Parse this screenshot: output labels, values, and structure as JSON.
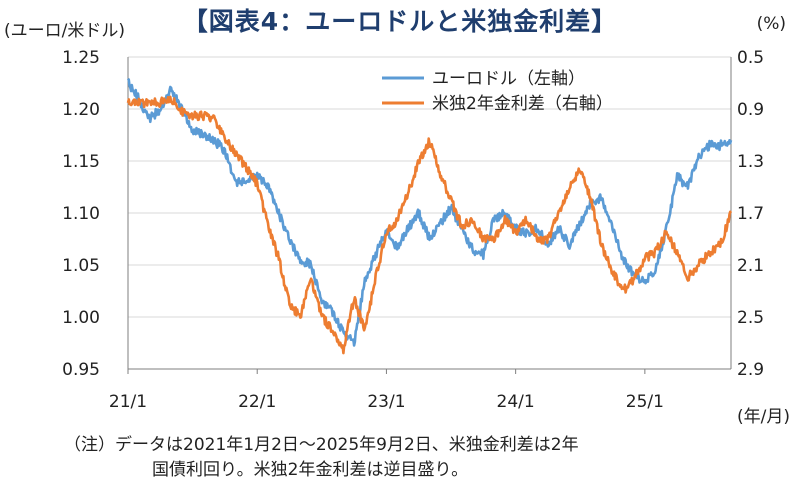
{
  "header": {
    "title": "【図表4：ユーロドルと米独金利差】",
    "left_unit": "(ユーロ/米ドル)",
    "right_unit": "(%)",
    "x_unit": "(年/月)"
  },
  "note": {
    "line1": "（注）データは2021年1月2日～2025年9月2日、米独金利差は2年",
    "line2": "国債利回り。米独2年金利差は逆目盛り。"
  },
  "colors": {
    "eurusd": "#5b9bd5",
    "spread": "#ed7d31",
    "grid": "#d9d9d9"
  },
  "chart_data": {
    "type": "line",
    "x_tick_labels": [
      "21/1",
      "22/1",
      "23/1",
      "24/1",
      "25/1"
    ],
    "x_range": [
      "2021-01",
      "2025-09"
    ],
    "y_left": {
      "ticks": [
        "1.25",
        "1.20",
        "1.15",
        "1.10",
        "1.05",
        "1.00",
        "0.95"
      ],
      "ylim": [
        0.95,
        1.25
      ]
    },
    "y_right": {
      "ticks": [
        "0.5",
        "0.9",
        "1.3",
        "1.7",
        "2.1",
        "2.5",
        "2.9"
      ],
      "ylim": [
        2.9,
        0.5
      ],
      "inverted": true
    },
    "grid": "horizontal",
    "legend_position": "top-right",
    "series": [
      {
        "name": "ユーロドル（左軸）",
        "axis": "left",
        "points": [
          [
            "2021-01",
            1.225
          ],
          [
            "2021-02",
            1.21
          ],
          [
            "2021-03",
            1.19
          ],
          [
            "2021-04",
            1.2
          ],
          [
            "2021-05",
            1.22
          ],
          [
            "2021-06",
            1.2
          ],
          [
            "2021-07",
            1.18
          ],
          [
            "2021-08",
            1.175
          ],
          [
            "2021-09",
            1.17
          ],
          [
            "2021-10",
            1.16
          ],
          [
            "2021-11",
            1.13
          ],
          [
            "2021-12",
            1.13
          ],
          [
            "2022-01",
            1.135
          ],
          [
            "2022-02",
            1.125
          ],
          [
            "2022-03",
            1.1
          ],
          [
            "2022-04",
            1.075
          ],
          [
            "2022-05",
            1.055
          ],
          [
            "2022-06",
            1.05
          ],
          [
            "2022-07",
            1.015
          ],
          [
            "2022-08",
            1.005
          ],
          [
            "2022-09",
            0.985
          ],
          [
            "2022-10",
            0.975
          ],
          [
            "2022-11",
            1.035
          ],
          [
            "2022-12",
            1.06
          ],
          [
            "2023-01",
            1.085
          ],
          [
            "2023-02",
            1.065
          ],
          [
            "2023-03",
            1.085
          ],
          [
            "2023-04",
            1.1
          ],
          [
            "2023-05",
            1.075
          ],
          [
            "2023-06",
            1.09
          ],
          [
            "2023-07",
            1.105
          ],
          [
            "2023-08",
            1.085
          ],
          [
            "2023-09",
            1.065
          ],
          [
            "2023-10",
            1.06
          ],
          [
            "2023-11",
            1.095
          ],
          [
            "2023-12",
            1.1
          ],
          [
            "2024-01",
            1.085
          ],
          [
            "2024-02",
            1.08
          ],
          [
            "2024-03",
            1.085
          ],
          [
            "2024-04",
            1.07
          ],
          [
            "2024-05",
            1.085
          ],
          [
            "2024-06",
            1.07
          ],
          [
            "2024-07",
            1.09
          ],
          [
            "2024-08",
            1.11
          ],
          [
            "2024-09",
            1.115
          ],
          [
            "2024-10",
            1.085
          ],
          [
            "2024-11",
            1.055
          ],
          [
            "2024-12",
            1.04
          ],
          [
            "2025-01",
            1.035
          ],
          [
            "2025-02",
            1.045
          ],
          [
            "2025-03",
            1.085
          ],
          [
            "2025-04",
            1.135
          ],
          [
            "2025-05",
            1.125
          ],
          [
            "2025-06",
            1.155
          ],
          [
            "2025-07",
            1.165
          ],
          [
            "2025-08",
            1.165
          ],
          [
            "2025-09",
            1.17
          ]
        ]
      },
      {
        "name": "米独2年金利差（右軸）",
        "axis": "right",
        "points": [
          [
            "2021-01",
            0.85
          ],
          [
            "2021-02",
            0.85
          ],
          [
            "2021-03",
            0.85
          ],
          [
            "2021-04",
            0.85
          ],
          [
            "2021-05",
            0.82
          ],
          [
            "2021-06",
            0.92
          ],
          [
            "2021-07",
            0.95
          ],
          [
            "2021-08",
            0.95
          ],
          [
            "2021-09",
            0.98
          ],
          [
            "2021-10",
            1.12
          ],
          [
            "2021-11",
            1.25
          ],
          [
            "2021-12",
            1.35
          ],
          [
            "2022-01",
            1.48
          ],
          [
            "2022-02",
            1.8
          ],
          [
            "2022-03",
            2.05
          ],
          [
            "2022-04",
            2.4
          ],
          [
            "2022-05",
            2.5
          ],
          [
            "2022-06",
            2.2
          ],
          [
            "2022-07",
            2.5
          ],
          [
            "2022-08",
            2.6
          ],
          [
            "2022-09",
            2.75
          ],
          [
            "2022-10",
            2.35
          ],
          [
            "2022-11",
            2.6
          ],
          [
            "2022-12",
            2.2
          ],
          [
            "2023-01",
            1.85
          ],
          [
            "2023-02",
            1.75
          ],
          [
            "2023-03",
            1.55
          ],
          [
            "2023-04",
            1.3
          ],
          [
            "2023-05",
            1.15
          ],
          [
            "2023-06",
            1.4
          ],
          [
            "2023-07",
            1.6
          ],
          [
            "2023-08",
            1.8
          ],
          [
            "2023-09",
            1.75
          ],
          [
            "2023-10",
            1.9
          ],
          [
            "2023-11",
            1.9
          ],
          [
            "2023-12",
            1.75
          ],
          [
            "2024-01",
            1.85
          ],
          [
            "2024-02",
            1.75
          ],
          [
            "2024-03",
            1.9
          ],
          [
            "2024-04",
            1.9
          ],
          [
            "2024-05",
            1.7
          ],
          [
            "2024-06",
            1.5
          ],
          [
            "2024-07",
            1.35
          ],
          [
            "2024-08",
            1.6
          ],
          [
            "2024-09",
            1.95
          ],
          [
            "2024-10",
            2.15
          ],
          [
            "2024-11",
            2.3
          ],
          [
            "2024-12",
            2.2
          ],
          [
            "2025-01",
            2.05
          ],
          [
            "2025-02",
            2.0
          ],
          [
            "2025-03",
            1.85
          ],
          [
            "2025-04",
            2.0
          ],
          [
            "2025-05",
            2.2
          ],
          [
            "2025-06",
            2.1
          ],
          [
            "2025-07",
            2.0
          ],
          [
            "2025-08",
            1.95
          ],
          [
            "2025-09",
            1.7
          ]
        ]
      }
    ]
  }
}
